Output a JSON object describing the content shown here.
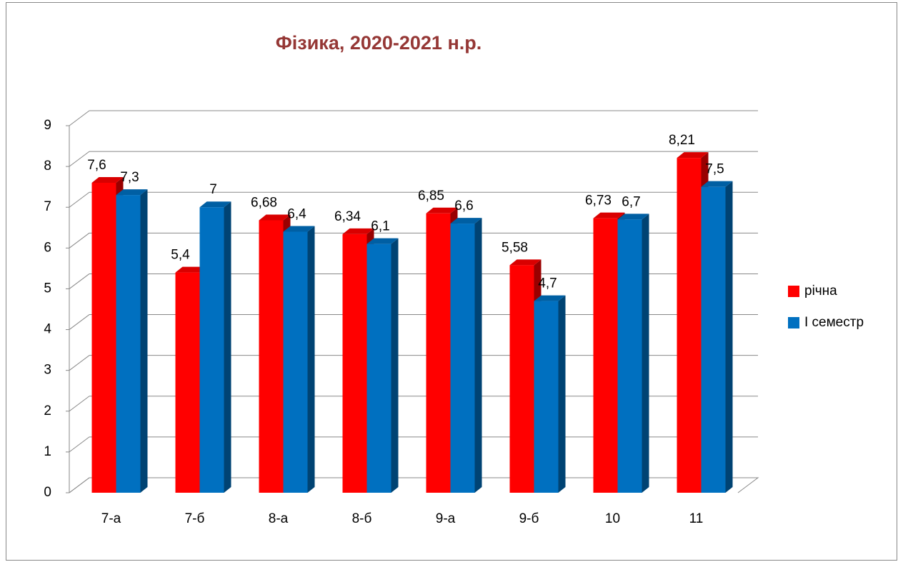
{
  "chart_data": {
    "type": "bar3d",
    "title": "Фізика, 2020-2021 н.р.",
    "categories": [
      "7-а",
      "7-б",
      "8-а",
      "8-б",
      "9-а",
      "9-б",
      "10",
      "11"
    ],
    "series": [
      {
        "name": "річна",
        "color": "#ff0000",
        "values": [
          7.6,
          5.4,
          6.68,
          6.34,
          6.85,
          5.58,
          6.73,
          8.21
        ],
        "value_labels": [
          "7,6",
          "5,4",
          "6,68",
          "6,34",
          "6,85",
          "5,58",
          "6,73",
          "8,21"
        ]
      },
      {
        "name": "І семестр",
        "color": "#0070c0",
        "values": [
          7.3,
          7,
          6.4,
          6.1,
          6.6,
          4.7,
          6.7,
          7.5
        ],
        "value_labels": [
          "7,3",
          "7",
          "6,4",
          "6,1",
          "6,6",
          "4,7",
          "6,7",
          "7,5"
        ]
      }
    ],
    "ylim": [
      0,
      9
    ],
    "yticks": [
      0,
      1,
      2,
      3,
      4,
      5,
      6,
      7,
      8,
      9
    ],
    "grid": true,
    "legend": "right"
  }
}
